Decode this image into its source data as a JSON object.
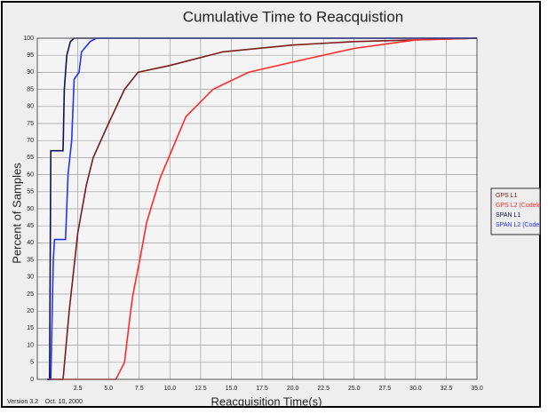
{
  "chart_data": {
    "type": "line",
    "title": "Cumulative Time to Reacquistion",
    "x_label": "Reacquisition Time(s)",
    "y_label": "Percent of Samples",
    "footnote": "Version 3.2    Oct. 10, 2000",
    "xlim": [
      -0.8,
      35
    ],
    "ylim": [
      0,
      100
    ],
    "xticks": [
      2.5,
      {
        "value": 5,
        "label": "5.0"
      },
      7.5,
      {
        "value": 10,
        "label": "10.0"
      },
      12.5,
      {
        "value": 15,
        "label": "15.0"
      },
      17.5,
      {
        "value": 20,
        "label": "20.0"
      },
      22.5,
      {
        "value": 25,
        "label": "25.0"
      },
      27.5,
      {
        "value": 30,
        "label": "30.0"
      },
      32.5,
      {
        "value": 35,
        "label": "35.0"
      }
    ],
    "yticks": [
      0,
      5,
      10,
      15,
      20,
      25,
      30,
      35,
      40,
      45,
      50,
      55,
      60,
      65,
      70,
      75,
      80,
      85,
      90,
      95,
      100
    ],
    "grid": true,
    "legend": "right",
    "series": [
      {
        "name": "GPS L1",
        "color": "#7a1c1c",
        "x": [
          0,
          1.3,
          1.8,
          2.5,
          3.2,
          3.75,
          5,
          6.3,
          7.4,
          10,
          14.3,
          20,
          25,
          35
        ],
        "values": [
          0,
          0,
          20,
          43,
          57,
          65,
          75,
          85,
          90,
          92,
          96,
          98,
          99,
          100
        ]
      },
      {
        "name": "GPS L2 (Codele",
        "color": "#ff2a2a",
        "x": [
          0,
          5.6,
          6.3,
          6.8,
          7,
          7.6,
          8.1,
          9.2,
          11.3,
          13.5,
          16.4,
          20,
          25,
          30,
          35
        ],
        "values": [
          0,
          0,
          5,
          20,
          25,
          36,
          46,
          59,
          77,
          85,
          90,
          93,
          97,
          99.5,
          100
        ]
      },
      {
        "name": "SPAN L1",
        "color": "#111150",
        "x": [
          0,
          0.2,
          0.3,
          1.3,
          1.4,
          1.6,
          1.9,
          2.2,
          35
        ],
        "values": [
          0,
          0,
          67,
          67,
          85,
          95,
          99,
          100,
          100
        ]
      },
      {
        "name": "SPAN L2 (Code",
        "color": "#2233ff",
        "x": [
          0,
          0.3,
          0.5,
          0.6,
          1.5,
          1.7,
          2,
          2.2,
          2.6,
          2.8,
          3.5,
          4,
          35
        ],
        "values": [
          0,
          0,
          35,
          41,
          41,
          60,
          70,
          88,
          90,
          96,
          99,
          100,
          100
        ]
      }
    ]
  }
}
